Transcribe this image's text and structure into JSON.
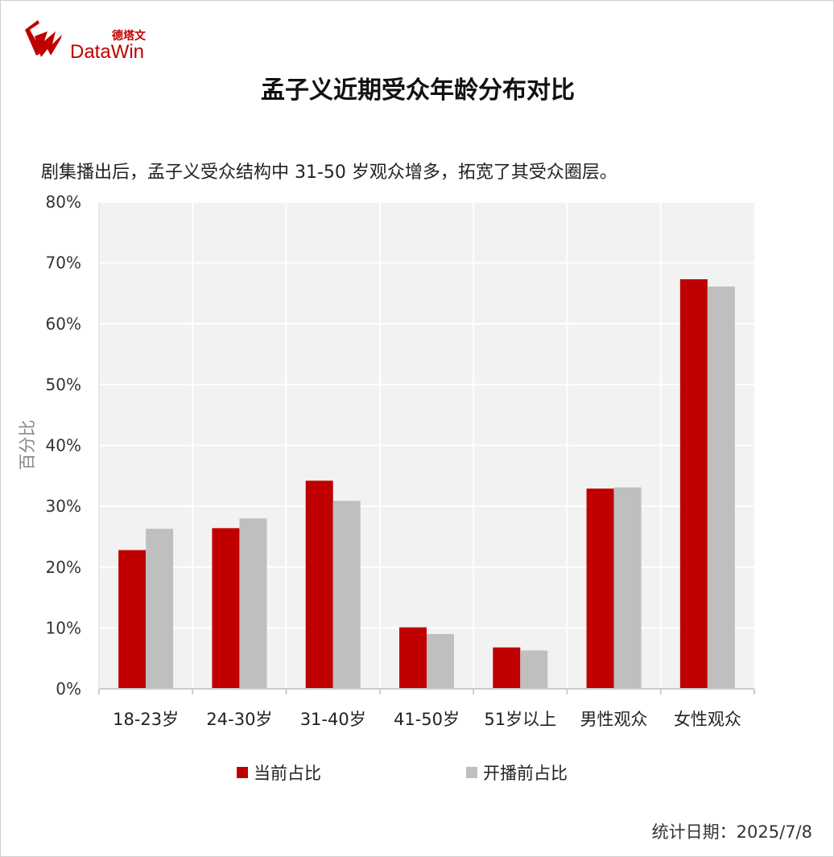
{
  "logo": {
    "cn": "德塔文",
    "en": "DataWin"
  },
  "title": "孟子义近期受众年龄分布对比",
  "subtitle": "剧集播出后，孟子义受众结构中 31-50 岁观众增多，拓宽了其受众圈层。",
  "footer": "统计日期：2025/7/8",
  "colors": {
    "current": "#c00000",
    "before": "#bfbfbf",
    "plot_bg": "#f2f2f2",
    "brand": "#c00000"
  },
  "chart_data": {
    "type": "bar",
    "categories": [
      "18-23岁",
      "24-30岁",
      "31-40岁",
      "41-50岁",
      "51岁以上",
      "男性观众",
      "女性观众"
    ],
    "series": [
      {
        "name": "当前占比",
        "values": [
          22.8,
          26.4,
          34.2,
          10.1,
          6.8,
          32.9,
          67.3
        ]
      },
      {
        "name": "开播前占比",
        "values": [
          26.3,
          28.0,
          30.9,
          9.0,
          6.3,
          33.1,
          66.1
        ]
      }
    ],
    "ylabel": "百分比",
    "ylim": [
      0,
      80
    ],
    "yticks": [
      "0%",
      "10%",
      "20%",
      "30%",
      "40%",
      "50%",
      "60%",
      "70%",
      "80%"
    ],
    "grid": true,
    "legend_position": "bottom"
  }
}
